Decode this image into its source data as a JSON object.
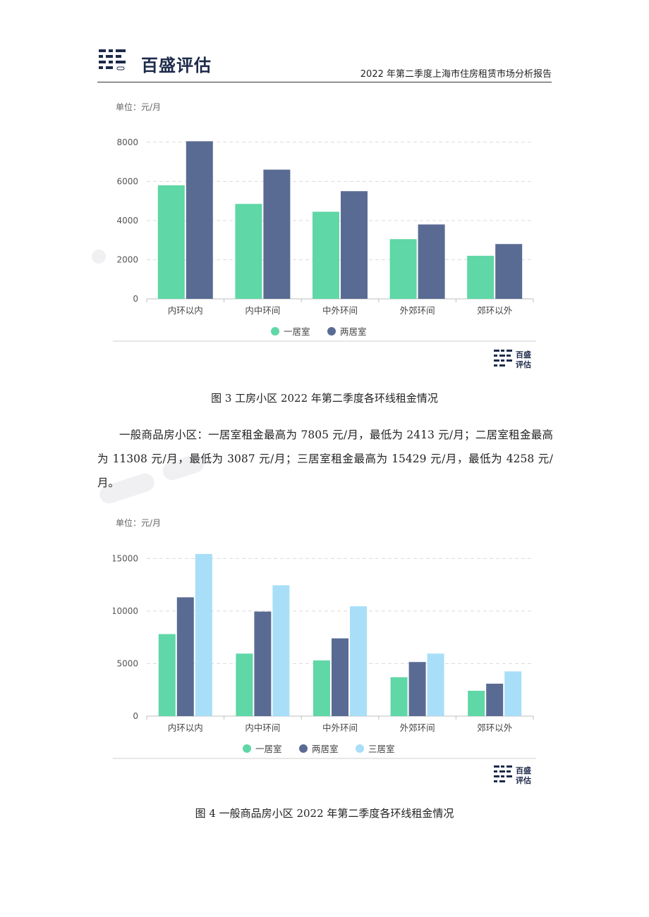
{
  "header": {
    "logo_text": "百盛评估",
    "report_title": "2022 年第二季度上海市住房租赁市场分析报告"
  },
  "brand": {
    "primary": "#1d2a4a"
  },
  "charts": [
    {
      "unit": "单位：元/月",
      "caption": "图 3 工房小区 2022 年第二季度各环线租金情况",
      "ymax": 9000,
      "ticks": [
        0,
        2000,
        4000,
        6000,
        8000
      ],
      "chart_data": {
        "type": "bar",
        "categories": [
          "内环以内",
          "内中环间",
          "中外环间",
          "外郊环间",
          "郊环以外"
        ],
        "series": [
          {
            "name": "一居室",
            "color": "#5fd7a6",
            "values": [
              5800,
              4850,
              4450,
              3050,
              2200
            ]
          },
          {
            "name": "两居室",
            "color": "#5a6b93",
            "values": [
              8050,
              6600,
              5500,
              3800,
              2800
            ]
          }
        ],
        "ylim": [
          0,
          9000
        ],
        "grid": true,
        "legend": "bottom"
      },
      "watermark_logo": "百盛评估"
    },
    {
      "unit": "单位：元/月",
      "caption": "图 4 一般商品房小区 2022 年第二季度各环线租金情况",
      "ymax": 16500,
      "ticks": [
        0,
        5000,
        10000,
        15000
      ],
      "chart_data": {
        "type": "bar",
        "categories": [
          "内环以内",
          "内中环间",
          "中外环间",
          "外郊环间",
          "郊环以外"
        ],
        "series": [
          {
            "name": "一居室",
            "color": "#5fd7a6",
            "values": [
              7805,
              5950,
              5300,
              3700,
              2413
            ]
          },
          {
            "name": "两居室",
            "color": "#5a6b93",
            "values": [
              11308,
              9950,
              7400,
              5150,
              3087
            ]
          },
          {
            "name": "三居室",
            "color": "#a8def8",
            "values": [
              15429,
              12450,
              10450,
              5950,
              4258
            ]
          }
        ],
        "ylim": [
          0,
          16500
        ],
        "grid": true,
        "legend": "bottom"
      },
      "watermark_logo": "百盛评估"
    }
  ],
  "paragraph": "一般商品房小区：一居室租金最高为 7805 元/月，最低为 2413 元/月；二居室租金最高为 11308 元/月，最低为 3087 元/月；三居室租金最高为 15429 元/月，最低为 4258 元/月。"
}
